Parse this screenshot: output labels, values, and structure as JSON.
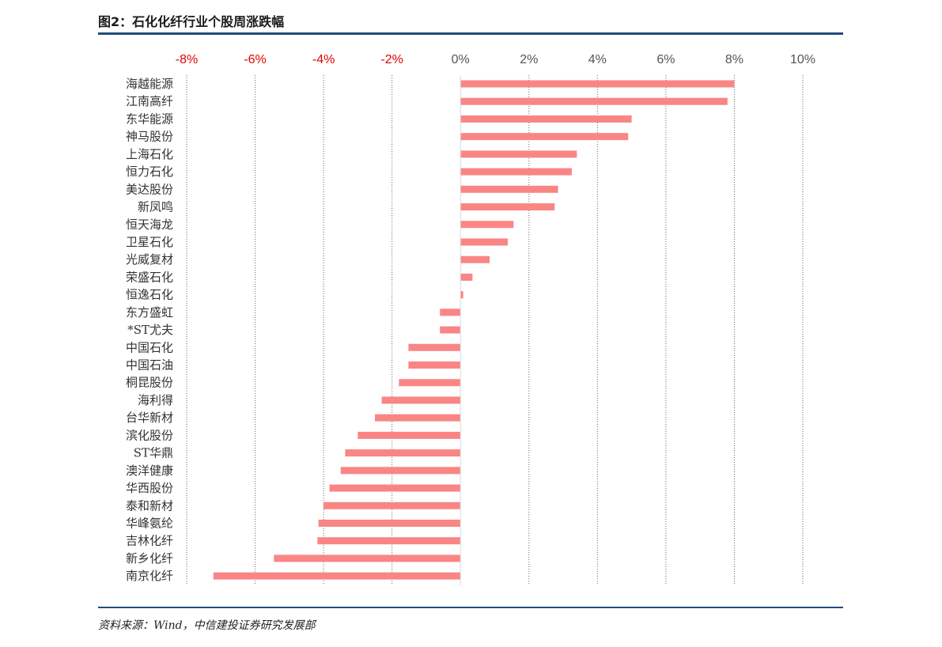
{
  "title": "图2：石化化纤行业个股周涨跌幅",
  "source": "资料来源：Wind，中信建投证券研究发展部",
  "colors": {
    "bar": "#fa8585",
    "negative_tick": "#e00000",
    "positive_tick": "#555555",
    "rule": "#1f4e79",
    "grid": "#666666"
  },
  "chart_data": {
    "type": "bar",
    "orientation": "horizontal",
    "title": "",
    "xlabel": "",
    "ylabel": "",
    "xlim": [
      -0.08,
      0.1
    ],
    "x_ticks": [
      -0.08,
      -0.06,
      -0.04,
      -0.02,
      0,
      0.02,
      0.04,
      0.06,
      0.08,
      0.1
    ],
    "x_tick_labels": [
      "-8%",
      "-6%",
      "-4%",
      "-2%",
      "0%",
      "2%",
      "4%",
      "6%",
      "8%",
      "10%"
    ],
    "tick_position": "top",
    "grid": "vertical dotted",
    "categories": [
      "海越能源",
      "江南高纤",
      "东华能源",
      "神马股份",
      "上海石化",
      "恒力石化",
      "美达股份",
      "新凤鸣",
      "恒天海龙",
      "卫星石化",
      "光威复材",
      "荣盛石化",
      "恒逸石化",
      "东方盛虹",
      "*ST尤夫",
      "中国石化",
      "中国石油",
      "桐昆股份",
      "海利得",
      "台华新材",
      "滨化股份",
      "ST华鼎",
      "澳洋健康",
      "华西股份",
      "泰和新材",
      "华峰氨纶",
      "吉林化纤",
      "新乡化纤",
      "南京化纤"
    ],
    "values": [
      0.08,
      0.078,
      0.05,
      0.049,
      0.034,
      0.0325,
      0.0285,
      0.0275,
      0.0155,
      0.0138,
      0.0085,
      0.0035,
      0.0008,
      -0.006,
      -0.006,
      -0.0152,
      -0.0152,
      -0.018,
      -0.023,
      -0.025,
      -0.03,
      -0.0337,
      -0.035,
      -0.0383,
      -0.04,
      -0.0415,
      -0.0418,
      -0.0545,
      -0.0722
    ]
  }
}
